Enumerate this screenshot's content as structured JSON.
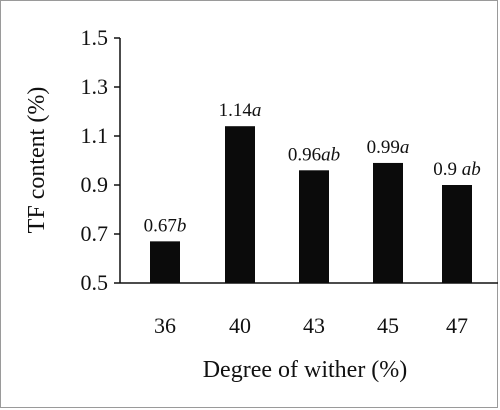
{
  "chart_data": {
    "type": "bar",
    "categories": [
      "36",
      "40",
      "43",
      "45",
      "47"
    ],
    "values": [
      0.67,
      1.14,
      0.96,
      0.99,
      0.9
    ],
    "labels": [
      {
        "value": "0.67",
        "letter": "b"
      },
      {
        "value": "1.14",
        "letter": "a"
      },
      {
        "value": "0.96",
        "letter": "ab"
      },
      {
        "value": "0.99",
        "letter": "a"
      },
      {
        "value": "0.9 ",
        "letter": "ab"
      }
    ],
    "xlabel": "Degree of wither (%)",
    "ylabel": "TF content (%)",
    "ylim": [
      0.5,
      1.5
    ],
    "yticks": [
      "0.5",
      "0.7",
      "0.9",
      "1.1",
      "1.3",
      "1.5"
    ],
    "grid": false,
    "colors": {
      "bar": "#0b0b0b"
    }
  }
}
